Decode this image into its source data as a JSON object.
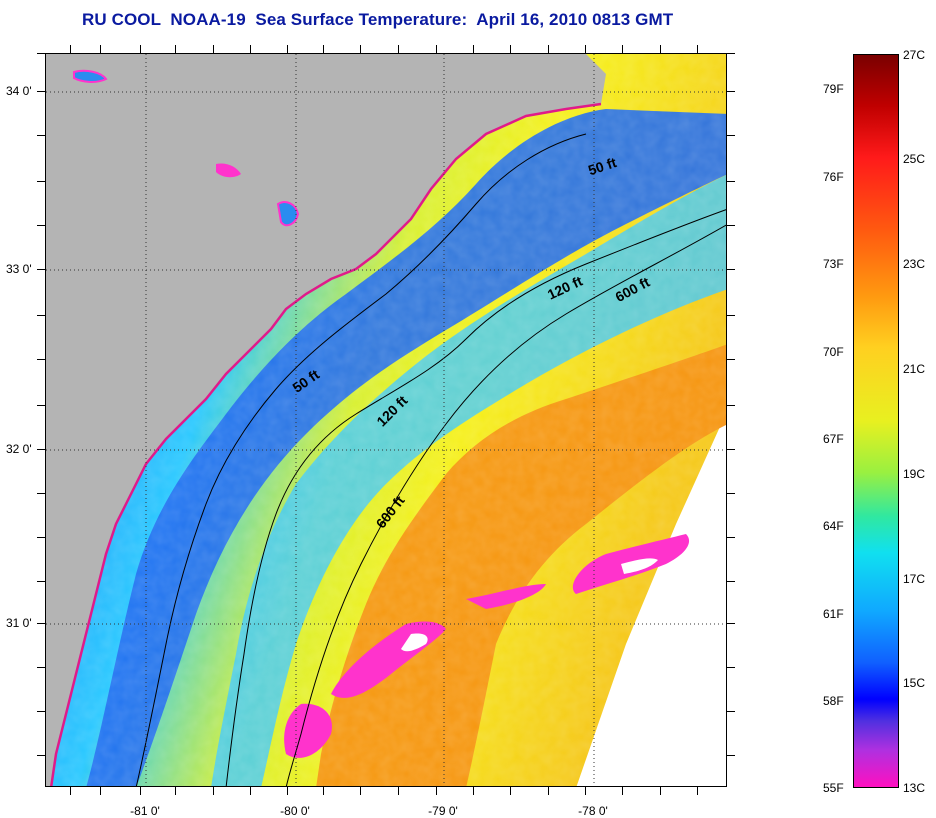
{
  "title": "RU COOL  NOAA-19  Sea Surface Temperature:  April 16, 2010 0813 GMT",
  "map": {
    "lat_ticks": [
      "34 0'",
      "33 0'",
      "32 0'",
      "31 0'"
    ],
    "lon_ticks": [
      "-81 0'",
      "-80 0'",
      "-79 0'",
      "-78 0'"
    ],
    "lat_values": [
      34,
      33,
      32,
      31
    ],
    "lon_values": [
      -81,
      -80,
      -79,
      -78
    ],
    "extent": {
      "lon_min": -81.65,
      "lon_max": -77.12,
      "lat_min": 30.19,
      "lat_max": 34.21
    },
    "isobaths": [
      {
        "label": "50 ft",
        "depth_ft": 50
      },
      {
        "label": "50 ft",
        "depth_ft": 50
      },
      {
        "label": "120 ft",
        "depth_ft": 120
      },
      {
        "label": "120 ft",
        "depth_ft": 120
      },
      {
        "label": "600 ft",
        "depth_ft": 600
      },
      {
        "label": "600 ft",
        "depth_ft": 600
      }
    ],
    "colors": {
      "land": "#b4b4b4",
      "cloud": "#ff33cc",
      "no_data": "#ffffff",
      "cold_water": "#1a6cf0",
      "cool_water": "#28c8ff",
      "warm_water": "#f5f01a",
      "gulf_stream": "#f58a0f"
    }
  },
  "legend": {
    "fahrenheit": [
      "79F",
      "76F",
      "73F",
      "70F",
      "67F",
      "64F",
      "61F",
      "58F",
      "55F"
    ],
    "celsius": [
      "27C",
      "25C",
      "23C",
      "21C",
      "19C",
      "17C",
      "15C",
      "13C"
    ]
  }
}
